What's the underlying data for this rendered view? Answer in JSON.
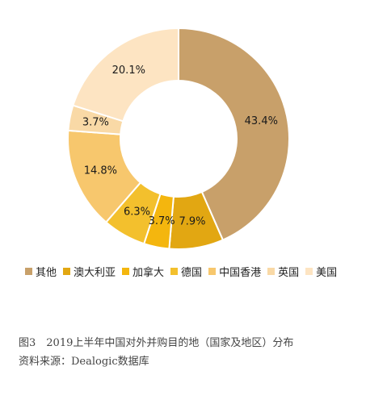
{
  "chart_data": {
    "type": "pie",
    "donut": true,
    "categories": [
      "其他",
      "澳大利亚",
      "加拿大",
      "德国",
      "中国香港",
      "英国",
      "美国"
    ],
    "values": [
      43.4,
      7.9,
      3.7,
      6.3,
      14.8,
      3.7,
      20.1
    ],
    "data_labels": [
      "43.4%",
      "7.9%",
      "3.7%",
      "6.3%",
      "14.8%",
      "3.7%",
      "20.1%"
    ],
    "colors": [
      "#c8a06a",
      "#e2a712",
      "#f4b60e",
      "#f3c02d",
      "#f7c76d",
      "#f9d9a6",
      "#fde4c2"
    ],
    "start_angle_deg": 0,
    "direction": "clockwise",
    "legend_position": "bottom"
  },
  "caption": {
    "figure_title": "图3　2019上半年中国对外并购目的地（国家及地区）分布",
    "source": "资料来源：Dealogic数据库"
  }
}
